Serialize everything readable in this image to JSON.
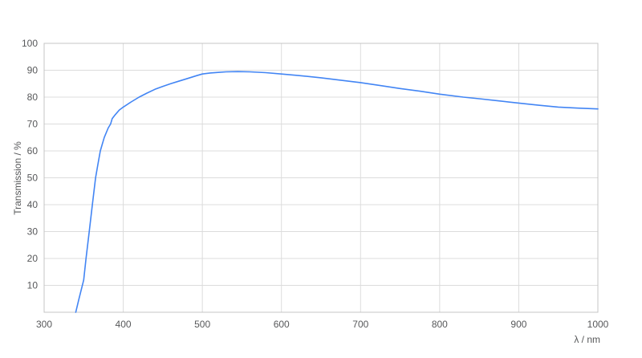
{
  "chart_data": {
    "type": "line",
    "title": "",
    "xlabel": "λ / nm",
    "ylabel": "Transmission / %",
    "xlim": [
      300,
      1000
    ],
    "ylim": [
      0,
      100
    ],
    "x_ticks": [
      300,
      400,
      500,
      600,
      700,
      800,
      900,
      1000
    ],
    "y_ticks": [
      10,
      20,
      30,
      40,
      50,
      60,
      70,
      80,
      90,
      100
    ],
    "grid": true,
    "legend": false,
    "series": [
      {
        "name": "Transmission",
        "color": "#4285f4",
        "points": [
          [
            340,
            0
          ],
          [
            344,
            5
          ],
          [
            350,
            12
          ],
          [
            353,
            20
          ],
          [
            357,
            30
          ],
          [
            361,
            40
          ],
          [
            365,
            50
          ],
          [
            368,
            55
          ],
          [
            371,
            60
          ],
          [
            376,
            65
          ],
          [
            381,
            68.5
          ],
          [
            384,
            70
          ],
          [
            386,
            72
          ],
          [
            390,
            73.5
          ],
          [
            395,
            75.2
          ],
          [
            400,
            76.3
          ],
          [
            410,
            78.2
          ],
          [
            420,
            80
          ],
          [
            430,
            81.5
          ],
          [
            440,
            82.9
          ],
          [
            450,
            84
          ],
          [
            460,
            85
          ],
          [
            470,
            85.9
          ],
          [
            480,
            86.8
          ],
          [
            493,
            88
          ],
          [
            500,
            88.6
          ],
          [
            510,
            89
          ],
          [
            520,
            89.2
          ],
          [
            530,
            89.4
          ],
          [
            545,
            89.5
          ],
          [
            560,
            89.4
          ],
          [
            580,
            89.1
          ],
          [
            600,
            88.6
          ],
          [
            620,
            88.1
          ],
          [
            650,
            87.2
          ],
          [
            675,
            86.3
          ],
          [
            700,
            85.4
          ],
          [
            725,
            84.3
          ],
          [
            750,
            83.2
          ],
          [
            775,
            82.2
          ],
          [
            800,
            81.1
          ],
          [
            830,
            80
          ],
          [
            850,
            79.4
          ],
          [
            875,
            78.6
          ],
          [
            900,
            77.8
          ],
          [
            925,
            77
          ],
          [
            950,
            76.3
          ],
          [
            975,
            75.9
          ],
          [
            1000,
            75.6
          ]
        ]
      }
    ],
    "colors": {
      "background": "#ffffff",
      "grid": "#dcdcdc",
      "border": "#c4c4c4",
      "tick_text": "#57585a",
      "line": "#4285f4"
    }
  }
}
